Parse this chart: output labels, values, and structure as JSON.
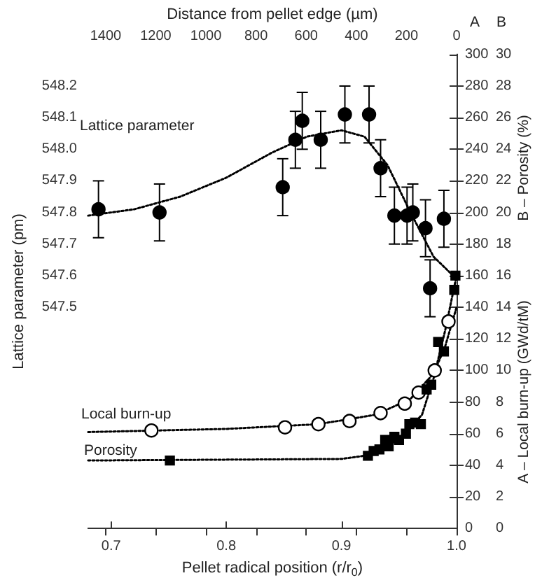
{
  "chart_data": {
    "type": "scatter",
    "xlabel": "Pellet radical position (r/r$_{0}$)",
    "ylabel": "Lattice parameter (pm)",
    "y2label": "A – Local burn-up (GWd/tM)",
    "y3label": "B – Porosity (%)",
    "x2label": "Distance from pellet edge (µm)",
    "xlim": [
      0.68,
      1.0
    ],
    "xticks": [
      {
        "value": 0.7,
        "label": "0.7"
      },
      {
        "value": 0.8,
        "label": "0.8"
      },
      {
        "value": 0.9,
        "label": "0.9"
      },
      {
        "value": 1.0,
        "label": "1.0"
      }
    ],
    "x2lim": [
      1470,
      0
    ],
    "x2ticks": [
      0,
      200,
      400,
      600,
      800,
      1000,
      1200,
      1400
    ],
    "ylim": [
      546.8,
      548.3
    ],
    "yticks": [
      {
        "value": 546.9,
        "label": null
      },
      {
        "value": 547.0,
        "label": null
      },
      {
        "value": 547.1,
        "label": null
      },
      {
        "value": 547.2,
        "label": null
      },
      {
        "value": 547.3,
        "label": null
      },
      {
        "value": 547.4,
        "label": null
      },
      {
        "value": 547.5,
        "label": "547.5"
      },
      {
        "value": 547.6,
        "label": "547.6"
      },
      {
        "value": 547.7,
        "label": "547.7"
      },
      {
        "value": 547.8,
        "label": "547.8"
      },
      {
        "value": 547.9,
        "label": "547.9"
      },
      {
        "value": 548.0,
        "label": "548.0"
      },
      {
        "value": 548.1,
        "label": "548.1"
      },
      {
        "value": 548.2,
        "label": "548.2"
      }
    ],
    "y2lim": [
      0,
      300
    ],
    "y2ticks": [
      0,
      20,
      40,
      60,
      80,
      100,
      120,
      140,
      160,
      180,
      200,
      220,
      240,
      260,
      280,
      300
    ],
    "y3lim": [
      0,
      30
    ],
    "y3ticks": [
      0,
      2,
      4,
      6,
      8,
      10,
      12,
      14,
      16,
      18,
      20,
      22,
      24,
      26,
      28,
      30
    ],
    "grid": false,
    "annotations": [
      "Lattice parameter",
      "Local burn-up",
      "Porosity",
      "A",
      "B"
    ],
    "series": [
      {
        "type": "line",
        "color": "#000000",
        "marker": "none",
        "line_style": "dotted",
        "x": [
          0.68,
          0.72,
          0.76,
          0.8,
          0.84,
          0.87,
          0.9,
          0.92,
          0.94,
          0.96,
          0.98,
          0.997
        ],
        "values": [
          547.79,
          547.81,
          547.85,
          547.91,
          547.99,
          548.04,
          548.06,
          548.04,
          547.95,
          547.8,
          547.66,
          547.6
        ]
      },
      {
        "type": "line",
        "axis": "y2",
        "color": "#000000",
        "marker": "none",
        "line_style": "dotted",
        "x": [
          0.68,
          0.8,
          0.88,
          0.93,
          0.96,
          0.98,
          0.99,
          1.0
        ],
        "values": [
          61,
          63,
          66,
          72,
          82,
          98,
          115,
          140
        ]
      },
      {
        "type": "line",
        "axis": "y3",
        "color": "#000000",
        "marker": "none",
        "line_style": "dotted",
        "x": [
          0.68,
          0.9,
          0.92,
          0.95,
          0.97,
          0.98,
          0.99,
          1.0
        ],
        "values": [
          4.3,
          4.4,
          4.6,
          5.6,
          7.2,
          9.5,
          12.5,
          16
        ]
      },
      {
        "color": "#000000",
        "marker": "circle",
        "x": [
          0.689,
          0.742,
          0.849,
          0.86,
          0.866,
          0.882,
          0.903,
          0.924,
          0.934,
          0.946,
          0.957,
          0.962,
          0.973,
          0.977,
          0.989
        ],
        "values": [
          547.81,
          547.8,
          547.88,
          548.03,
          548.09,
          548.03,
          548.11,
          548.11,
          547.94,
          547.79,
          547.79,
          547.8,
          547.75,
          547.56,
          547.78
        ],
        "errors": [
          0.09,
          0.09,
          0.09,
          0.09,
          0.09,
          0.09,
          0.09,
          0.09,
          0.09,
          0.09,
          0.09,
          0.09,
          0.09,
          0.09,
          0.09
        ]
      },
      {
        "axis": "y2",
        "color": "#ffffff",
        "marker": "circle",
        "x": [
          0.735,
          0.851,
          0.88,
          0.907,
          0.934,
          0.955,
          0.967,
          0.981,
          0.993
        ],
        "values": [
          62,
          64,
          66,
          68,
          73,
          79,
          86,
          100,
          131
        ]
      },
      {
        "axis": "y3",
        "color": "#000000",
        "marker": "square",
        "x": [
          0.751,
          0.923,
          0.928,
          0.933,
          0.938,
          0.941,
          0.946,
          0.95,
          0.956,
          0.959,
          0.964,
          0.969,
          0.974,
          0.978,
          0.984,
          0.989,
          0.998,
          0.999
        ],
        "values": [
          4.3,
          4.6,
          4.9,
          5.0,
          5.6,
          5.2,
          5.8,
          5.6,
          6.0,
          6.6,
          6.7,
          6.6,
          8.8,
          9.1,
          11.8,
          11.2,
          15.1,
          16.0
        ]
      }
    ]
  }
}
